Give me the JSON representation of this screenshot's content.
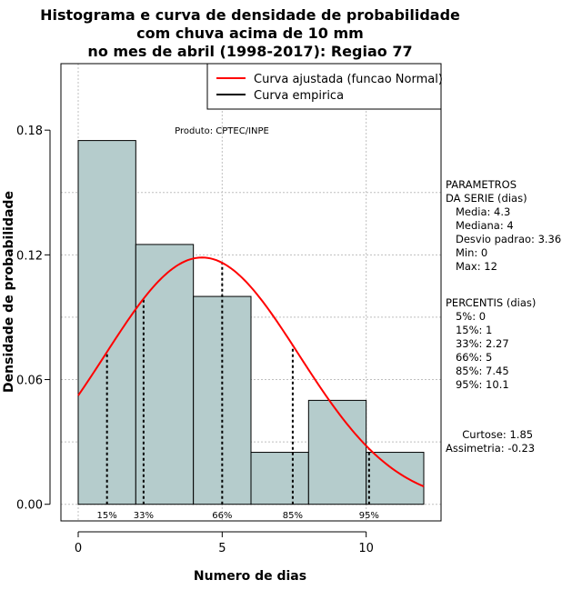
{
  "chart_data": {
    "type": "bar",
    "title_lines": [
      "Histograma e curva de densidade de probabilidade",
      "com chuva acima de 10 mm",
      "no mes de abril (1998-2017): Regiao 77"
    ],
    "xlabel": "Numero de dias",
    "ylabel": "Densidade de probabilidade",
    "xlim": [
      -0.6,
      12.6
    ],
    "ylim": [
      -0.008,
      0.212
    ],
    "xticks": [
      0,
      5,
      10
    ],
    "yticks": [
      0.0,
      0.06,
      0.12,
      0.18
    ],
    "ytick_labels": [
      "0.00",
      "0.06",
      "0.12",
      "0.18"
    ],
    "grid": true,
    "bins": [
      {
        "start": 0,
        "end": 2,
        "value": 0.175
      },
      {
        "start": 2,
        "end": 4,
        "value": 0.125
      },
      {
        "start": 4,
        "end": 6,
        "value": 0.1
      },
      {
        "start": 6,
        "end": 8,
        "value": 0.025
      },
      {
        "start": 8,
        "end": 10,
        "value": 0.05
      },
      {
        "start": 10,
        "end": 12,
        "value": 0.025
      }
    ],
    "normal_curve": {
      "name": "Curva ajustada (funcao Normal)",
      "mean": 4.3,
      "sd": 3.36,
      "x_range": [
        0,
        12
      ]
    },
    "legend": [
      {
        "label": "Curva ajustada (funcao Normal)",
        "color": "#ff0000"
      },
      {
        "label": "Curva empirica",
        "color": "#000000"
      }
    ],
    "legend_position": "top-right",
    "percentile_markers": [
      {
        "label": "15%",
        "x": 1.0
      },
      {
        "label": "33%",
        "x": 2.27
      },
      {
        "label": "66%",
        "x": 5.0
      },
      {
        "label": "85%",
        "x": 7.45
      },
      {
        "label": "95%",
        "x": 10.1
      }
    ],
    "annotation": "Produto: CPTEC/INPE"
  },
  "side_panel": {
    "parametros": [
      "PARAMETROS",
      "DA SERIE (dias)",
      "   Media: 4.3",
      "   Mediana: 4",
      "   Desvio padrao: 3.36",
      "   Min: 0",
      "   Max: 12"
    ],
    "percentis": [
      "PERCENTIS (dias)",
      "   5%: 0",
      "   15%: 1",
      "   33%: 2.27",
      "   66%: 5",
      "   85%: 7.45",
      "   95%: 10.1"
    ],
    "shape": [
      "     Curtose: 1.85",
      "Assimetria: -0.23"
    ]
  },
  "colors": {
    "bar_fill": "#b5cccc",
    "curve": "#ff0000",
    "grid": "#bfbfbf"
  }
}
